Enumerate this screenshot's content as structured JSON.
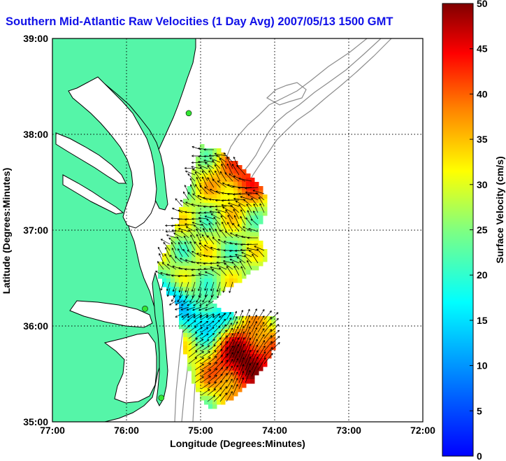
{
  "title": "Southern Mid-Atlantic Raw Velocities (1 Day Avg) 2007/05/13 1500 GMT",
  "map": {
    "xlabel": "Longitude (Degrees:Minutes)",
    "ylabel": "Latitude (Degrees:Minutes)",
    "lon_ticks": [
      "77:00",
      "76:00",
      "75:00",
      "74:00",
      "73:00",
      "72:00"
    ],
    "lat_ticks": [
      "39:00",
      "38:00",
      "37:00",
      "36:00",
      "35:00"
    ],
    "lon_range": [
      -77,
      -72
    ],
    "lat_range": [
      35,
      39
    ],
    "grid": true,
    "land_color": "#55f5a8",
    "coast_color": "#000000",
    "bathy_color": "#8c8c8c",
    "station_color": "#33e633",
    "stations": [
      {
        "lon": -75.16,
        "lat": 38.22
      },
      {
        "lon": -75.75,
        "lat": 36.18
      },
      {
        "lon": -75.53,
        "lat": 35.25
      }
    ]
  },
  "colorbar": {
    "label": "Surface Velocity (cm/s)",
    "ticks": [
      "50",
      "45",
      "40",
      "35",
      "30",
      "25",
      "20",
      "15",
      "10",
      "5",
      "0"
    ],
    "min": 0,
    "max": 50,
    "colormap": "jet"
  }
}
